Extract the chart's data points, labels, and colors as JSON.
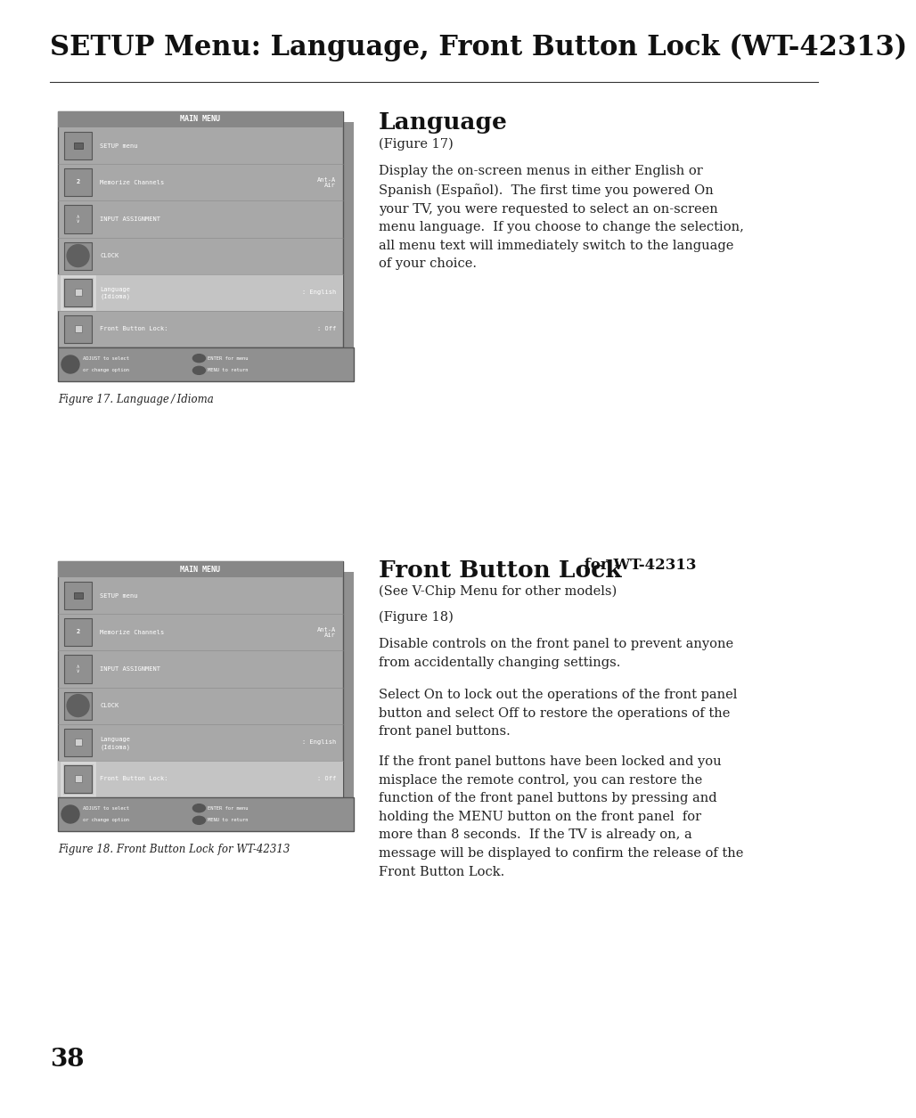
{
  "page_bg": "#ffffff",
  "title": "SETUP Menu: Language, Front Button Lock (WT-42313)",
  "title_fontsize": 22,
  "title_font": "serif",
  "lang_heading": "Language",
  "lang_fig_ref": "(Figure 17)",
  "lang_body": "Display the on-screen menus in either English or\nSpanish (Español).  The first time you powered On\nyour TV, you were requested to select an on-screen\nmenu language.  If you choose to change the selection,\nall menu text will immediately switch to the language\nof your choice.",
  "fbl_heading": "Front Button Lock",
  "fbl_heading_suffix": " for WT-42313",
  "fbl_sub": "(See V-Chip Menu for other models)",
  "fbl_fig_ref": "(Figure 18)",
  "fbl_body1": "Disable controls on the front panel to prevent anyone\nfrom accidentally changing settings.",
  "fbl_body2": "Select On to lock out the operations of the front panel\nbutton and select Off to restore the operations of the\nfront panel buttons.",
  "fbl_body3": "If the front panel buttons have been locked and you\nmisplace the remote control, you can restore the\nfunction of the front panel buttons by pressing and\nholding the MENU button on the front panel  for\nmore than 8 seconds.  If the TV is already on, a\nmessage will be displayed to confirm the release of the\nFront Button Lock.",
  "fig17_caption": "Figure 17. Language / Idioma",
  "fig18_caption": "Figure 18. Front Button Lock for WT-42313",
  "menu_bg": "#a8a8a8",
  "menu_shadow_bg": "#909090",
  "menu_header_bg": "#878787",
  "menu_inner_bg": "#b0b0b0",
  "menu_highlight_bg": "#c4c4c4",
  "menu_border": "#666666",
  "menu_text_color": "#ffffff",
  "page_number": "38"
}
